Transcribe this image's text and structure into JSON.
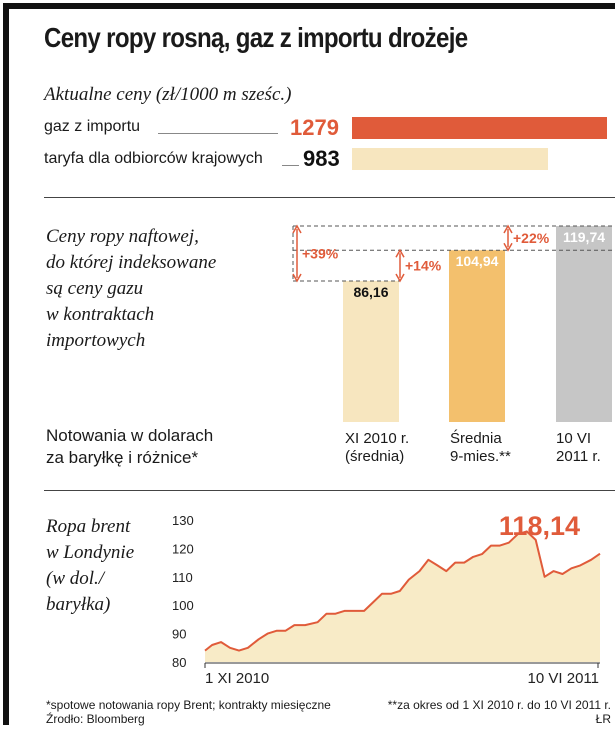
{
  "title": "Ceny ropy rosną, gaz z importu drożeje",
  "section1": {
    "subtitle": "Aktualne ceny (zł/1000 m sześc.)",
    "rows": [
      {
        "label": "gaz z importu",
        "value": "1279"
      },
      {
        "label": "taryfa dla odbiorców krajowych",
        "value": "983"
      }
    ]
  },
  "section2": {
    "heading_lines": [
      "Ceny ropy naftowej,",
      "do której indeksowane",
      "są ceny gazu",
      "w kontraktach",
      "importowych"
    ],
    "note_lines": [
      "Notowania w dolarach",
      "za baryłkę i różnice*"
    ],
    "bar_labels": [
      {
        "line1": "XI 2010 r.",
        "line2": "(średnia)"
      },
      {
        "line1": "Średnia",
        "line2": "9-mies.**"
      },
      {
        "line1": "10 VI",
        "line2": "2011 r."
      }
    ],
    "diffs": {
      "d1": "+39%",
      "d2": "+14%",
      "d3": "+22%"
    }
  },
  "section3": {
    "heading_lines": [
      "Ropa brent",
      "w Londynie",
      "(w dol./",
      "baryłka)"
    ],
    "last_value": "118,14",
    "x_ticks": [
      "1 XI 2010",
      "10 VI 2011"
    ]
  },
  "footnotes": {
    "left1": "*spotowe notowania ropy Brent; kontrakty miesięczne",
    "left2": "Źrodło: Bloomberg",
    "right1": "**za okres od 1 XI 2010 r. do 10 VI 2011 r.",
    "right2": "ŁR"
  },
  "colors": {
    "orange": "#e05b3a",
    "beige": "#f7e6bf",
    "amber": "#f3c06d",
    "gray": "#c6c6c6",
    "area": "#f8ebc7"
  },
  "chart_data": [
    {
      "type": "bar",
      "title": "Aktualne ceny (zł/1000 m sześc.)",
      "orientation": "horizontal",
      "categories": [
        "gaz z importu",
        "taryfa dla odbiorców krajowych"
      ],
      "values": [
        1279,
        983
      ]
    },
    {
      "type": "bar",
      "title": "Notowania w dolarach za baryłkę i różnice*",
      "categories": [
        "XI 2010 r. (średnia)",
        "Średnia 9-mies.**",
        "10 VI 2011 r."
      ],
      "values": [
        86.16,
        104.94,
        119.74
      ],
      "value_labels": [
        "86,16",
        "104,94",
        "119,74"
      ],
      "annotations": [
        "+39%",
        "+14%",
        "+22%"
      ]
    },
    {
      "type": "area",
      "title": "Ropa brent w Londynie (w dol./baryłka)",
      "xlabel": "",
      "ylabel": "",
      "ylim": [
        80,
        130
      ],
      "yticks": [
        80,
        90,
        100,
        110,
        120,
        130
      ],
      "x": [
        "2010-11-01",
        "2010-11-05",
        "2010-11-10",
        "2010-11-15",
        "2010-11-20",
        "2010-11-25",
        "2010-12-01",
        "2010-12-06",
        "2010-12-11",
        "2010-12-16",
        "2010-12-21",
        "2010-12-27",
        "2011-01-03",
        "2011-01-08",
        "2011-01-13",
        "2011-01-18",
        "2011-01-24",
        "2011-01-29",
        "2011-02-03",
        "2011-02-08",
        "2011-02-13",
        "2011-02-18",
        "2011-02-23",
        "2011-03-01",
        "2011-03-06",
        "2011-03-11",
        "2011-03-16",
        "2011-03-21",
        "2011-03-26",
        "2011-03-31",
        "2011-04-05",
        "2011-04-10",
        "2011-04-15",
        "2011-04-20",
        "2011-04-25",
        "2011-04-30",
        "2011-05-05",
        "2011-05-10",
        "2011-05-15",
        "2011-05-20",
        "2011-05-25",
        "2011-05-30",
        "2011-06-05",
        "2011-06-10"
      ],
      "values": [
        84,
        86,
        87,
        85,
        84,
        85,
        88,
        90,
        91,
        91,
        93,
        93,
        94,
        97,
        97,
        98,
        98,
        98,
        101,
        104,
        104,
        105,
        109,
        112,
        116,
        114,
        112,
        115,
        115,
        117,
        118,
        121,
        121,
        122,
        125,
        126,
        123,
        110,
        112,
        111,
        113,
        114,
        116,
        118.14
      ],
      "last_value_label": "118,14",
      "x_tick_labels": [
        "1 XI 2010",
        "10 VI 2011"
      ],
      "grid": false
    }
  ]
}
